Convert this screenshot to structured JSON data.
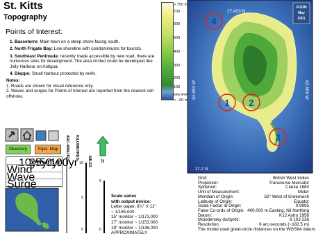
{
  "header": {
    "title": "St. Kitts",
    "subtitle": "Topography"
  },
  "legend": {
    "labels": [
      "> 750 m",
      "700",
      "600",
      "500",
      "400",
      "300",
      "200",
      "100",
      "sea level",
      "< - 60 m"
    ]
  },
  "points_of_interest": {
    "heading": "Points of Interest:",
    "items": [
      {
        "label": "1. Basseterre:",
        "text": "Main town on a steep shore facing south."
      },
      {
        "label": "2. North Frigate Bay:",
        "text": "Low shoreline with condominiums for tourists."
      },
      {
        "label": "3. Southeast Peninsula:",
        "text": "recently made accessible by new road, there are numerous sites for development. The area circled could be developed like Jolly Harbour on Antigua."
      },
      {
        "label": "4. Dieppe:",
        "text": "Small harbour protected by reefs."
      }
    ]
  },
  "notes": {
    "heading": "Notes:",
    "items": [
      "1. Roads are shown for visual reference only.",
      "2. Waves and surges for Points of Interest are reported from the nearest cell offshore."
    ]
  },
  "buttons": {
    "directory": "Directory",
    "topo_map": "Topo. Map"
  },
  "table": {
    "columns": [
      "10yr",
      "25yr",
      "50yr",
      "100yr"
    ],
    "rows": [
      "Wind",
      "Wave",
      "Surge"
    ]
  },
  "scale_bar": {
    "arc_label": "ARC-MINUTES",
    "km_label": "KILOMETRES",
    "mi_label": "MILES",
    "km_ticks": [
      "10",
      "5",
      "0"
    ],
    "mi_ticks": [
      "5",
      "0"
    ],
    "north": "N"
  },
  "scale_note": {
    "lines": [
      "Scale varies",
      "with output device:",
      "Letter paper, 8½\" X 11\"",
      "~ 1/185,000",
      "15\" monitor ~ 1/173,000",
      "17\" monitor ~ 1/153,000",
      "19\" monitor ~ 1/136,000",
      "APPROXIMATELY"
    ]
  },
  "map": {
    "top_label": "17.433 N",
    "bottom_label": "17.2 N",
    "left_label": "62.883 W",
    "right_label": "62.609 W",
    "logo": [
      "PGDM",
      "May",
      "2001"
    ],
    "markers": [
      "1",
      "2",
      "3",
      "4"
    ]
  },
  "metadata": {
    "rows": [
      [
        "Grid:",
        "British West Indies"
      ],
      [
        "Projection:",
        "Transverse Mercator"
      ],
      [
        "Spheroid:",
        "Clarke 1880"
      ],
      [
        "Unit of Measurement:",
        "Meter"
      ],
      [
        "Meridian of Origin:",
        "62° West of Greenwich"
      ],
      [
        "Latitude of Origin:",
        "Equator"
      ],
      [
        "Scale Factor at Origin:",
        "0.9995"
      ],
      [
        "False Co-ords of Origin:",
        "400,000 m Easting, Nil Northing"
      ],
      [
        "Datum:",
        "K12 Astro 1958"
      ],
      [
        "Moiodensky dx/dy/dz:",
        "9 103 236"
      ],
      [
        "Resolution:",
        "6 arc-seconds (~182.5 m)"
      ]
    ],
    "footnote": "The model used great-circle distances on the WGS84 datum."
  }
}
